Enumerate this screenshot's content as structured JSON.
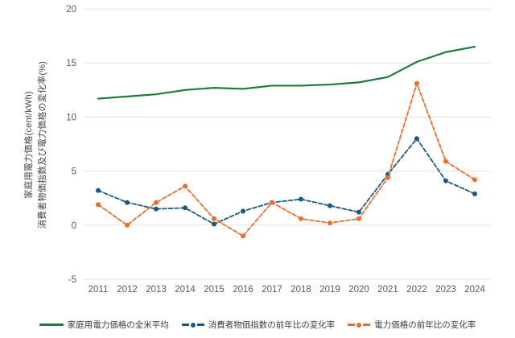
{
  "figure": {
    "background": "#ffffff"
  },
  "axes": {
    "y_title_line1": "家庭用電力価格(cent/kWh)",
    "y_title_line2": "消費者物価指数及び電力価格の変化率(%)",
    "y_ticks": [
      20,
      15,
      10,
      5,
      0,
      -5
    ],
    "x_ticks": [
      "2011",
      "2012",
      "2013",
      "2014",
      "2015",
      "2016",
      "2017",
      "2018",
      "2019",
      "2020",
      "2021",
      "2022",
      "2023",
      "2024"
    ],
    "tick_color": "#595959",
    "grid_color": "#e3e3e3"
  },
  "chart_data": {
    "type": "line",
    "title": "",
    "xlabel": "",
    "ylabel": "家庭用電力価格(cent/kWh) / 消費者物価指数及び電力価格の変化率(%)",
    "categories": [
      2011,
      2012,
      2013,
      2014,
      2015,
      2016,
      2017,
      2018,
      2019,
      2020,
      2021,
      2022,
      2023,
      2024
    ],
    "ylim": [
      -5,
      20
    ],
    "grid": "horizontal, every 5 units",
    "legend_position": "bottom",
    "series": [
      {
        "key": "household_price_us_avg",
        "name": "家庭用電力価格の全米平均",
        "unit": "cent/kWh",
        "color": "#1e7b3c",
        "line_style": "solid",
        "marker": "none",
        "values": [
          11.7,
          11.9,
          12.1,
          12.5,
          12.7,
          12.6,
          12.9,
          12.9,
          13.0,
          13.2,
          13.7,
          15.1,
          16.0,
          16.5
        ]
      },
      {
        "key": "cpi_yoy_change",
        "name": "消費者物価指数の前年比の変化率",
        "unit": "%",
        "color": "#1c5a7d",
        "line_style": "dashed",
        "marker": "circle",
        "values": [
          3.2,
          2.1,
          1.5,
          1.6,
          0.1,
          1.3,
          2.1,
          2.4,
          1.8,
          1.2,
          4.7,
          8.0,
          4.1,
          2.9
        ]
      },
      {
        "key": "power_price_yoy_change",
        "name": "電力価格の前年比の変化率",
        "unit": "%",
        "color": "#ed6c2f",
        "line_style": "dashed",
        "marker": "circle",
        "values": [
          1.9,
          0.0,
          2.1,
          3.6,
          0.6,
          -1.0,
          2.1,
          0.6,
          0.2,
          0.6,
          4.4,
          13.1,
          5.9,
          4.2
        ]
      }
    ]
  }
}
